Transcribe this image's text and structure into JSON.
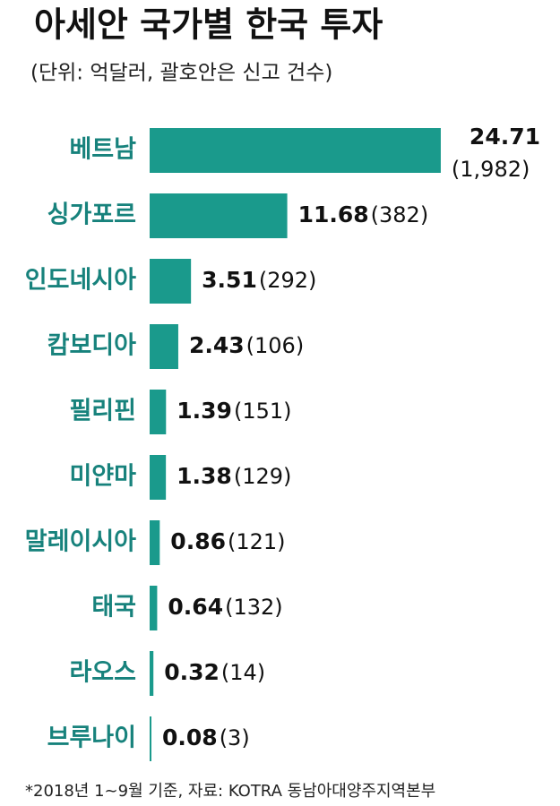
{
  "chart_data": {
    "type": "bar",
    "orientation": "horizontal",
    "title": "아세안 국가별 한국 투자",
    "subtitle": "(단위: 억달러, 괄호안은 신고 건수)",
    "categories": [
      "베트남",
      "싱가포르",
      "인도네시아",
      "캄보디아",
      "필리핀",
      "미얀마",
      "말레이시아",
      "태국",
      "라오스",
      "브루나이"
    ],
    "values": [
      24.71,
      11.68,
      3.51,
      2.43,
      1.39,
      1.38,
      0.86,
      0.64,
      0.32,
      0.08
    ],
    "counts": [
      1982,
      382,
      292,
      106,
      151,
      129,
      121,
      132,
      14,
      3
    ],
    "count_labels": [
      "(1,982)",
      "(382)",
      "(292)",
      "(106)",
      "(151)",
      "(129)",
      "(121)",
      "(132)",
      "(14)",
      "(3)"
    ],
    "color": "#1a9a8c",
    "note": "*2018년 1~9월 기준, 자료: KOTRA 동남아대양주지역본부"
  }
}
